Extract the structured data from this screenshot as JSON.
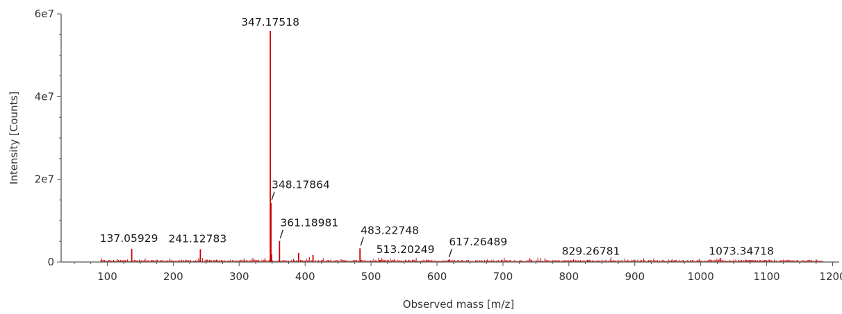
{
  "chart_data": {
    "type": "line",
    "xlabel": "Observed mass [m/z]",
    "ylabel": "Intensity [Counts]",
    "xlim": [
      30,
      1210
    ],
    "ylim": [
      0,
      60000000
    ],
    "x_ticks": [
      100,
      200,
      300,
      400,
      500,
      600,
      700,
      800,
      900,
      1000,
      1100,
      1200
    ],
    "x_tick_labels": [
      "100",
      "200",
      "300",
      "400",
      "500",
      "600",
      "700",
      "800",
      "900",
      "1000",
      "1100",
      "1200"
    ],
    "y_ticks": [
      0,
      20000000,
      40000000,
      60000000
    ],
    "y_tick_labels": [
      "0",
      "2e7",
      "4e7",
      "6e7"
    ],
    "grid": false,
    "series": [
      {
        "color": "#cc0000",
        "x": [
          137.05929,
          241.12783,
          347.17518,
          348.17864,
          349.18,
          361.18981,
          390.2,
          412.0,
          483.22748,
          513.20249,
          617.26489,
          829.26781,
          1073.34718
        ],
        "y": [
          3200000,
          3100000,
          55800000,
          14300000,
          1800000,
          5100000,
          2200000,
          1700000,
          3300000,
          500000,
          500000,
          400000,
          400000
        ]
      }
    ],
    "annotations": [
      {
        "text": "137.05929",
        "x": 137.05929,
        "y": 3200000,
        "leader": false
      },
      {
        "text": "241.12783",
        "x": 241.12783,
        "y": 3100000,
        "leader": false
      },
      {
        "text": "347.17518",
        "x": 347.17518,
        "y": 55800000,
        "leader": false
      },
      {
        "text": "348.17864",
        "x": 348.17864,
        "y": 14300000,
        "leader": true
      },
      {
        "text": "361.18981",
        "x": 361.18981,
        "y": 5100000,
        "leader": true
      },
      {
        "text": "483.22748",
        "x": 483.22748,
        "y": 3300000,
        "leader": true
      },
      {
        "text": "513.20249",
        "x": 513.20249,
        "y": 500000,
        "leader": false
      },
      {
        "text": "617.26489",
        "x": 617.26489,
        "y": 500000,
        "leader": true
      },
      {
        "text": "829.26781",
        "x": 829.26781,
        "y": 400000,
        "leader": false
      },
      {
        "text": "1073.34718",
        "x": 1073.34718,
        "y": 400000,
        "leader": false
      }
    ]
  }
}
